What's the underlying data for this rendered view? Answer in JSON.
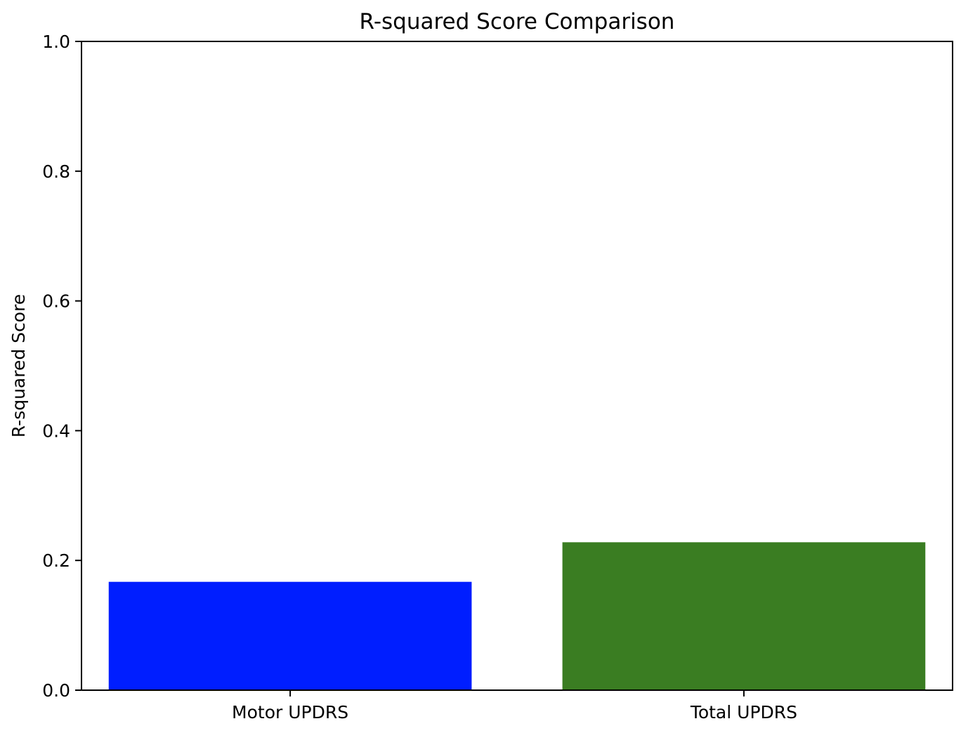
{
  "chart_data": {
    "type": "bar",
    "title": "R-squared Score Comparison",
    "xlabel": "",
    "ylabel": "R-squared Score",
    "categories": [
      "Motor UPDRS",
      "Total UPDRS"
    ],
    "values": [
      0.167,
      0.228
    ],
    "bar_colors": [
      "#001eff",
      "#3a7d22"
    ],
    "ylim": [
      0.0,
      1.0
    ],
    "yticks": [
      0.0,
      0.2,
      0.4,
      0.6,
      0.8,
      1.0
    ],
    "ytick_labels": [
      "0.0",
      "0.2",
      "0.4",
      "0.6",
      "0.8",
      "1.0"
    ],
    "grid": false,
    "legend": "none"
  }
}
